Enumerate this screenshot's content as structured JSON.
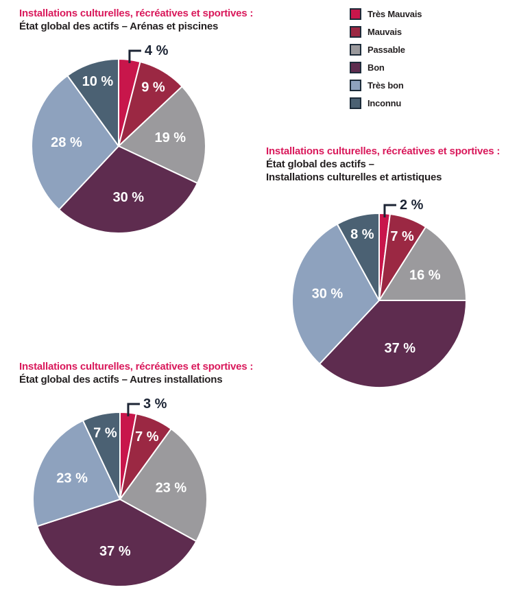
{
  "colors": {
    "background": "#FFFFFF",
    "title_accent": "#D9195B",
    "title_dark": "#231F20",
    "callout_text": "#1C2434",
    "slice_divider": "#FFFFFF"
  },
  "legend": {
    "swatch_border_color": "#1C2B39",
    "items": [
      {
        "label": "Très Mauvais",
        "color": "#C8164B"
      },
      {
        "label": "Mauvais",
        "color": "#9B2843"
      },
      {
        "label": "Passable",
        "color": "#9B9A9D"
      },
      {
        "label": "Bon",
        "color": "#5E2C4F"
      },
      {
        "label": "Très bon",
        "color": "#8EA2BE"
      },
      {
        "label": "Inconnu",
        "color": "#4B6173"
      }
    ]
  },
  "chart_data": [
    {
      "type": "pie",
      "title": "Installations culturelles, récréatives et sportives :",
      "subtitle_lines": [
        "État global des actifs – Arénas et piscines"
      ],
      "categories": [
        "Très Mauvais",
        "Mauvais",
        "Passable",
        "Bon",
        "Très bon",
        "Inconnu"
      ],
      "values": [
        4,
        9,
        19,
        30,
        28,
        10
      ],
      "labels": [
        "4 %",
        "9 %",
        "19 %",
        "30 %",
        "28 %",
        "10 %"
      ],
      "unit": "%",
      "start_angle_deg": 0,
      "direction": "clockwise",
      "callout_index": 0,
      "legend_position": "top-right-shared"
    },
    {
      "type": "pie",
      "title": "Installations culturelles, récréatives et sportives :",
      "subtitle_lines": [
        "État global des actifs –",
        "Installations culturelles et artistiques"
      ],
      "categories": [
        "Très Mauvais",
        "Mauvais",
        "Passable",
        "Bon",
        "Très bon",
        "Inconnu"
      ],
      "values": [
        2,
        7,
        16,
        37,
        30,
        8
      ],
      "labels": [
        "2 %",
        "7 %",
        "16 %",
        "37 %",
        "30 %",
        "8 %"
      ],
      "unit": "%",
      "start_angle_deg": 0,
      "direction": "clockwise",
      "callout_index": 0,
      "legend_position": "top-right-shared"
    },
    {
      "type": "pie",
      "title": "Installations culturelles, récréatives et sportives :",
      "subtitle_lines": [
        "État global des actifs – Autres installations"
      ],
      "categories": [
        "Très Mauvais",
        "Mauvais",
        "Passable",
        "Bon",
        "Très bon",
        "Inconnu"
      ],
      "values": [
        3,
        7,
        23,
        37,
        23,
        7
      ],
      "labels": [
        "3 %",
        "7 %",
        "23 %",
        "37 %",
        "23 %",
        "7 %"
      ],
      "unit": "%",
      "start_angle_deg": 0,
      "direction": "clockwise",
      "callout_index": 0,
      "legend_position": "top-right-shared"
    }
  ]
}
